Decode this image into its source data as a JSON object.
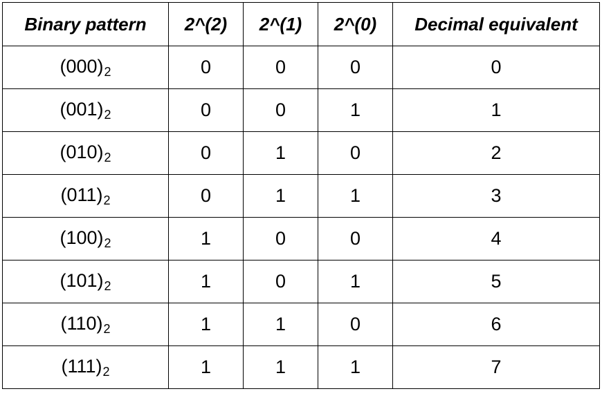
{
  "table": {
    "headers": [
      "Binary pattern",
      "2^(2)",
      "2^(1)",
      "2^(0)",
      "Decimal equivalent"
    ],
    "base_subscript": "2",
    "rows": [
      {
        "pattern": "(000)",
        "b2": "0",
        "b1": "0",
        "b0": "0",
        "decimal": "0"
      },
      {
        "pattern": "(001)",
        "b2": "0",
        "b1": "0",
        "b0": "1",
        "decimal": "1"
      },
      {
        "pattern": "(010)",
        "b2": "0",
        "b1": "1",
        "b0": "0",
        "decimal": "2"
      },
      {
        "pattern": "(011)",
        "b2": "0",
        "b1": "1",
        "b0": "1",
        "decimal": "3"
      },
      {
        "pattern": "(100)",
        "b2": "1",
        "b1": "0",
        "b0": "0",
        "decimal": "4"
      },
      {
        "pattern": "(101)",
        "b2": "1",
        "b1": "0",
        "b0": "1",
        "decimal": "5"
      },
      {
        "pattern": "(110)",
        "b2": "1",
        "b1": "1",
        "b0": "0",
        "decimal": "6"
      },
      {
        "pattern": "(111)",
        "b2": "1",
        "b1": "1",
        "b0": "1",
        "decimal": "7"
      }
    ]
  }
}
